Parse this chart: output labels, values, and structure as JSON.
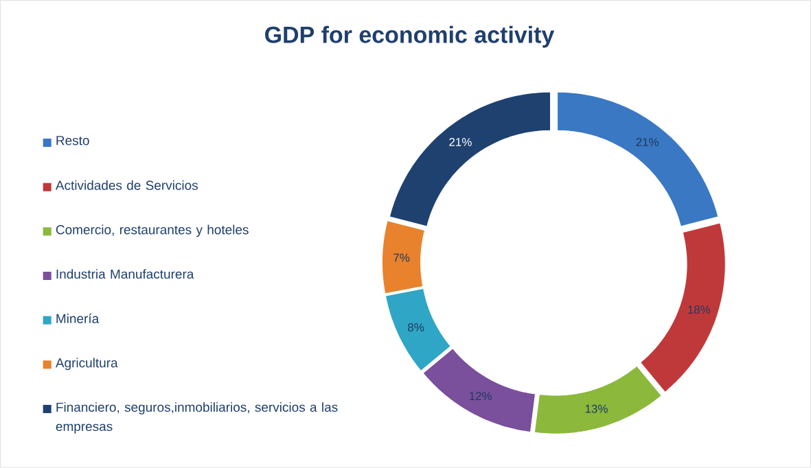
{
  "chart_data": {
    "type": "donut",
    "title": "GDP for economic activity",
    "categories": [
      "Resto",
      "Actividades de Servicios",
      "Comercio, restaurantes y hoteles",
      "Industria Manufacturera",
      "Minería",
      "Agricultura",
      "Financiero, seguros,inmobiliarios, servicios a las empresas"
    ],
    "values": [
      21,
      18,
      13,
      12,
      8,
      7,
      21
    ],
    "value_labels": [
      "21%",
      "18%",
      "13%",
      "12%",
      "8%",
      "7%",
      "21%"
    ],
    "colors": [
      "#3a78c4",
      "#c0393a",
      "#8cb83c",
      "#7a4f9c",
      "#2fa6c6",
      "#e8822c",
      "#1f4170"
    ],
    "legend": "left"
  }
}
